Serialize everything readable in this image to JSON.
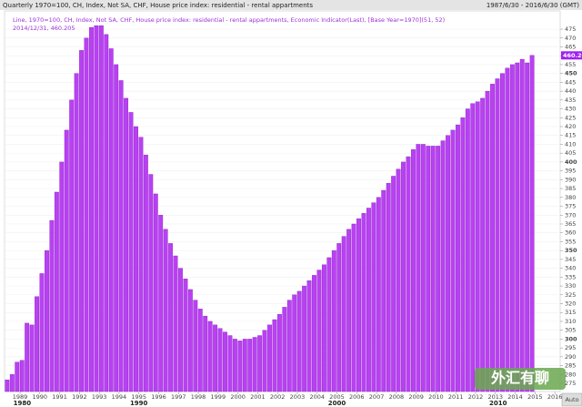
{
  "header": {
    "title": "Quarterly 1970=100, CH, Index, Not SA, CHF, House price index: residential - rental appartments",
    "range": "1987/6/30 - 2016/6/30 (GMT)"
  },
  "chart_data": {
    "type": "bar",
    "legend_line": "Line, 1970=100, CH, Index, Not SA, CHF, House price index: residential - rental appartments, Economic Indicator(Last), [Base Year=1970](51, 52)",
    "legend_sub": "2014/12/31, 460.205",
    "x": [
      1988.25,
      1988.5,
      1988.75,
      1989,
      1989.25,
      1989.5,
      1989.75,
      1990,
      1990.25,
      1990.5,
      1990.75,
      1991,
      1991.25,
      1991.5,
      1991.75,
      1992,
      1992.25,
      1992.5,
      1992.75,
      1993,
      1993.25,
      1993.5,
      1993.75,
      1994,
      1994.25,
      1994.5,
      1994.75,
      1995,
      1995.25,
      1995.5,
      1995.75,
      1996,
      1996.25,
      1996.5,
      1996.75,
      1997,
      1997.25,
      1997.5,
      1997.75,
      1998,
      1998.25,
      1998.5,
      1998.75,
      1999,
      1999.25,
      1999.5,
      1999.75,
      2000,
      2000.25,
      2000.5,
      2000.75,
      2001,
      2001.25,
      2001.5,
      2001.75,
      2002,
      2002.25,
      2002.5,
      2002.75,
      2003,
      2003.25,
      2003.5,
      2003.75,
      2004,
      2004.25,
      2004.5,
      2004.75,
      2005,
      2005.25,
      2005.5,
      2005.75,
      2006,
      2006.25,
      2006.5,
      2006.75,
      2007,
      2007.25,
      2007.5,
      2007.75,
      2008,
      2008.25,
      2008.5,
      2008.75,
      2009,
      2009.25,
      2009.5,
      2009.75,
      2010,
      2010.25,
      2010.5,
      2010.75,
      2011,
      2011.25,
      2011.5,
      2011.75,
      2012,
      2012.25,
      2012.5,
      2012.75,
      2013,
      2013.25,
      2013.5,
      2013.75,
      2014,
      2014.25,
      2014.5,
      2014.75
    ],
    "values": [
      277,
      280,
      287,
      288,
      309,
      308,
      324,
      337,
      350,
      367,
      383,
      400,
      418,
      435,
      450,
      463,
      470,
      476,
      477,
      477,
      472,
      464,
      455,
      446,
      436,
      428,
      420,
      414,
      404,
      393,
      382,
      370,
      362,
      354,
      347,
      340,
      334,
      328,
      322,
      317,
      313,
      310,
      308,
      306,
      304,
      302,
      300,
      299,
      300,
      300,
      301,
      302,
      305,
      308,
      311,
      314,
      318,
      322,
      325,
      327,
      330,
      333,
      336,
      339,
      342,
      346,
      350,
      354,
      358,
      362,
      365,
      368,
      371,
      374,
      377,
      380,
      384,
      388,
      392,
      396,
      400,
      403,
      407,
      410,
      410,
      409,
      409,
      409,
      412,
      415,
      418,
      421,
      425,
      430,
      433,
      434,
      436,
      440,
      444,
      447,
      450,
      453,
      455,
      456,
      458,
      456,
      460.205
    ],
    "color": "#b941f2",
    "xlim": [
      1988.22,
      2016.27
    ],
    "xticks": [
      1989,
      1990,
      1991,
      1992,
      1993,
      1994,
      1995,
      1996,
      1997,
      1998,
      1999,
      2000,
      2001,
      2002,
      2003,
      2004,
      2005,
      2006,
      2007,
      2008,
      2009,
      2010,
      2011,
      2012,
      2013,
      2014,
      2015,
      2016
    ],
    "decades": [
      1980,
      1990,
      2000,
      2010
    ],
    "ylim": [
      270.4,
      485.3
    ],
    "yticks": [
      275,
      280,
      285,
      290,
      295,
      300,
      305,
      310,
      315,
      320,
      325,
      330,
      335,
      340,
      345,
      350,
      355,
      360,
      365,
      370,
      375,
      380,
      385,
      390,
      395,
      400,
      405,
      410,
      415,
      420,
      425,
      430,
      435,
      440,
      445,
      450,
      455,
      460,
      465,
      470,
      475
    ],
    "grid": true,
    "axis_button": "Auto",
    "watermark": "外汇有聊"
  }
}
